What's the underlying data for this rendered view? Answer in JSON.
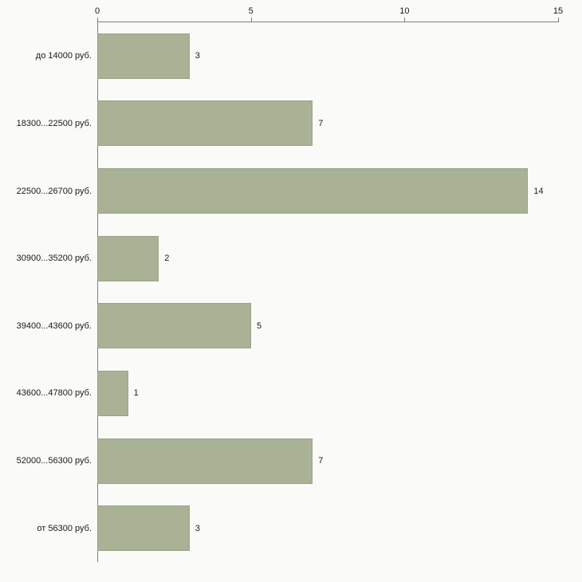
{
  "chart_data": {
    "type": "bar",
    "orientation": "horizontal",
    "title": "",
    "xlabel": "",
    "ylabel": "",
    "categories": [
      "до 14000 руб.",
      "18300...22500 руб.",
      "22500...26700 руб.",
      "30900...35200 руб.",
      "39400...43600 руб.",
      "43600...47800 руб.",
      "52000...56300 руб.",
      "от 56300 руб."
    ],
    "values": [
      3,
      7,
      14,
      2,
      5,
      1,
      7,
      3
    ],
    "xlim": [
      0,
      15
    ],
    "xticks": [
      0,
      5,
      10,
      15
    ],
    "grid": false,
    "legend": null,
    "value_labels_shown": true,
    "axis_position": "top-left"
  },
  "colors": {
    "bar_fill": "#aab296",
    "bar_border": "#9aa286",
    "background": "#fafaf8",
    "axis_line": "#7f7f7f",
    "text": "#1a1a1a"
  }
}
